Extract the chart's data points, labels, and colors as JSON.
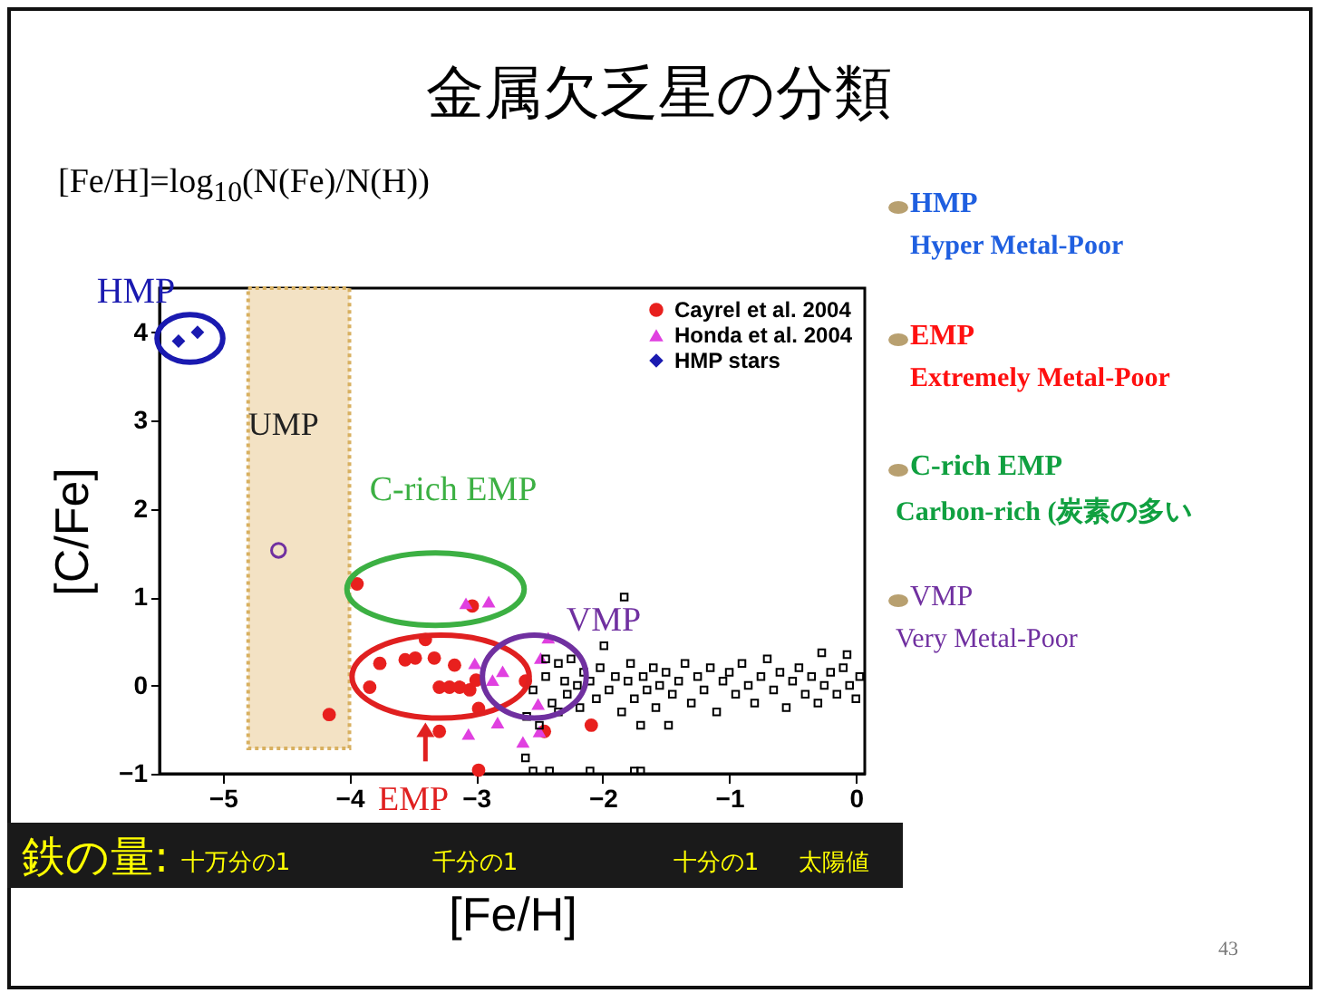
{
  "chart_data": {
    "type": "scatter",
    "title": "金属欠乏星の分類",
    "subtitle": "[Fe/H]=log$_{10}$(N(Fe)/N(H))",
    "xlabel": "[Fe/H]",
    "ylabel": "[C/Fe]",
    "xlim": [
      -5.5,
      0.07
    ],
    "xticks": [
      -5,
      -4,
      -3,
      -2,
      -1,
      0
    ],
    "ylim": [
      -1,
      4.5
    ],
    "yticks": [
      -1,
      0,
      1,
      2,
      3,
      4
    ],
    "grid": false,
    "legend": "top right",
    "series": [
      {
        "name": "Cayrel et al. 2004",
        "color": "#e8201e",
        "marker": "circle",
        "x": [
          -3.94,
          -3.03,
          -3.4,
          -3.76,
          -3.56,
          -3.48,
          -3.17,
          -3.84,
          -3.29,
          -3.13,
          -3.05,
          -3.0,
          -2.61,
          -2.98,
          -3.29,
          -2.46,
          -2.09,
          -2.98,
          -4.16,
          -3.33,
          -3.21
        ],
        "values": [
          1.15,
          0.9,
          0.52,
          0.25,
          0.29,
          0.31,
          0.23,
          -0.02,
          -0.02,
          -0.02,
          -0.05,
          0.06,
          0.05,
          -0.26,
          -0.52,
          -0.52,
          -0.45,
          -0.96,
          -0.33,
          0.31,
          -0.02
        ]
      },
      {
        "name": "Honda et al. 2004",
        "color": "#e040e0",
        "marker": "triangle",
        "x": [
          -3.08,
          -2.9,
          -3.01,
          -2.79,
          -2.49,
          -2.43,
          -2.51,
          -2.83,
          -3.06,
          -2.63,
          -2.5,
          -2.87
        ],
        "values": [
          0.93,
          0.95,
          0.25,
          0.16,
          0.31,
          0.54,
          -0.21,
          -0.42,
          -0.55,
          -0.64,
          -0.52,
          0.06
        ]
      },
      {
        "name": "HMP stars",
        "color": "#1a1ab0",
        "marker": "diamond",
        "x": [
          -5.35,
          -5.2
        ],
        "values": [
          3.9,
          4.0
        ]
      },
      {
        "color": "#000000",
        "marker": "square",
        "x": [
          -2.55,
          -2.5,
          -2.45,
          -2.4,
          -2.35,
          -2.3,
          -2.28,
          -2.25,
          -2.2,
          -2.18,
          -2.15,
          -2.1,
          -2.05,
          -2.02,
          -1.99,
          -1.95,
          -1.9,
          -1.85,
          -1.83,
          -1.8,
          -1.78,
          -1.75,
          -1.7,
          -1.68,
          -1.65,
          -1.6,
          -1.58,
          -1.55,
          -1.5,
          -1.48,
          -1.45,
          -1.4,
          -1.35,
          -1.3,
          -1.25,
          -1.2,
          -1.15,
          -1.1,
          -1.05,
          -1.0,
          -0.95,
          -0.9,
          -0.85,
          -0.8,
          -0.75,
          -0.7,
          -0.65,
          -0.6,
          -0.55,
          -0.5,
          -0.45,
          -0.4,
          -0.35,
          -0.3,
          -0.27,
          -0.25,
          -0.2,
          -0.15,
          -0.1,
          -0.07,
          -0.05,
          0.0,
          0.03,
          -2.61,
          -2.55,
          -2.42,
          -2.1,
          -1.75,
          -1.7,
          -2.45,
          -2.6,
          -2.35
        ],
        "values": [
          -0.05,
          -0.45,
          0.1,
          -0.2,
          0.25,
          0.05,
          -0.1,
          0.3,
          0.0,
          -0.25,
          0.15,
          0.05,
          -0.15,
          0.2,
          0.45,
          -0.05,
          0.1,
          -0.3,
          1.0,
          0.05,
          0.25,
          -0.15,
          -0.45,
          0.1,
          -0.05,
          0.2,
          -0.25,
          0.0,
          0.15,
          -0.45,
          -0.1,
          0.05,
          0.25,
          -0.2,
          0.1,
          -0.05,
          0.2,
          -0.3,
          0.05,
          0.15,
          -0.1,
          0.25,
          0.0,
          -0.2,
          0.1,
          0.3,
          -0.05,
          0.15,
          -0.25,
          0.05,
          0.2,
          -0.1,
          0.1,
          -0.2,
          0.37,
          0.0,
          0.15,
          -0.1,
          0.2,
          0.35,
          0.0,
          -0.15,
          0.1,
          -0.82,
          -0.97,
          -0.97,
          -0.97,
          -0.97,
          -0.97,
          0.3,
          -0.35,
          -0.3
        ]
      },
      {
        "color": "#7030a0",
        "marker": "circle",
        "x": [
          -4.56
        ],
        "values": [
          1.53
        ]
      }
    ],
    "bands": [
      {
        "axis": "x",
        "from": -4.8,
        "to": -4.0,
        "label": "UMP",
        "color": "#f3e2c4"
      }
    ],
    "annotations": [
      "HMP",
      "C-rich EMP",
      "VMP",
      "EMP",
      "HMP",
      "Hyper Metal-Poor",
      "EMP",
      "Extremely Metal-Poor",
      "C-rich EMP",
      "Carbon-rich (炭素の多い",
      "VMP",
      "Very Metal-Poor",
      "鉄の量:",
      "十万分の1",
      "千分の1",
      "十分の1",
      "太陽値",
      "43"
    ]
  }
}
